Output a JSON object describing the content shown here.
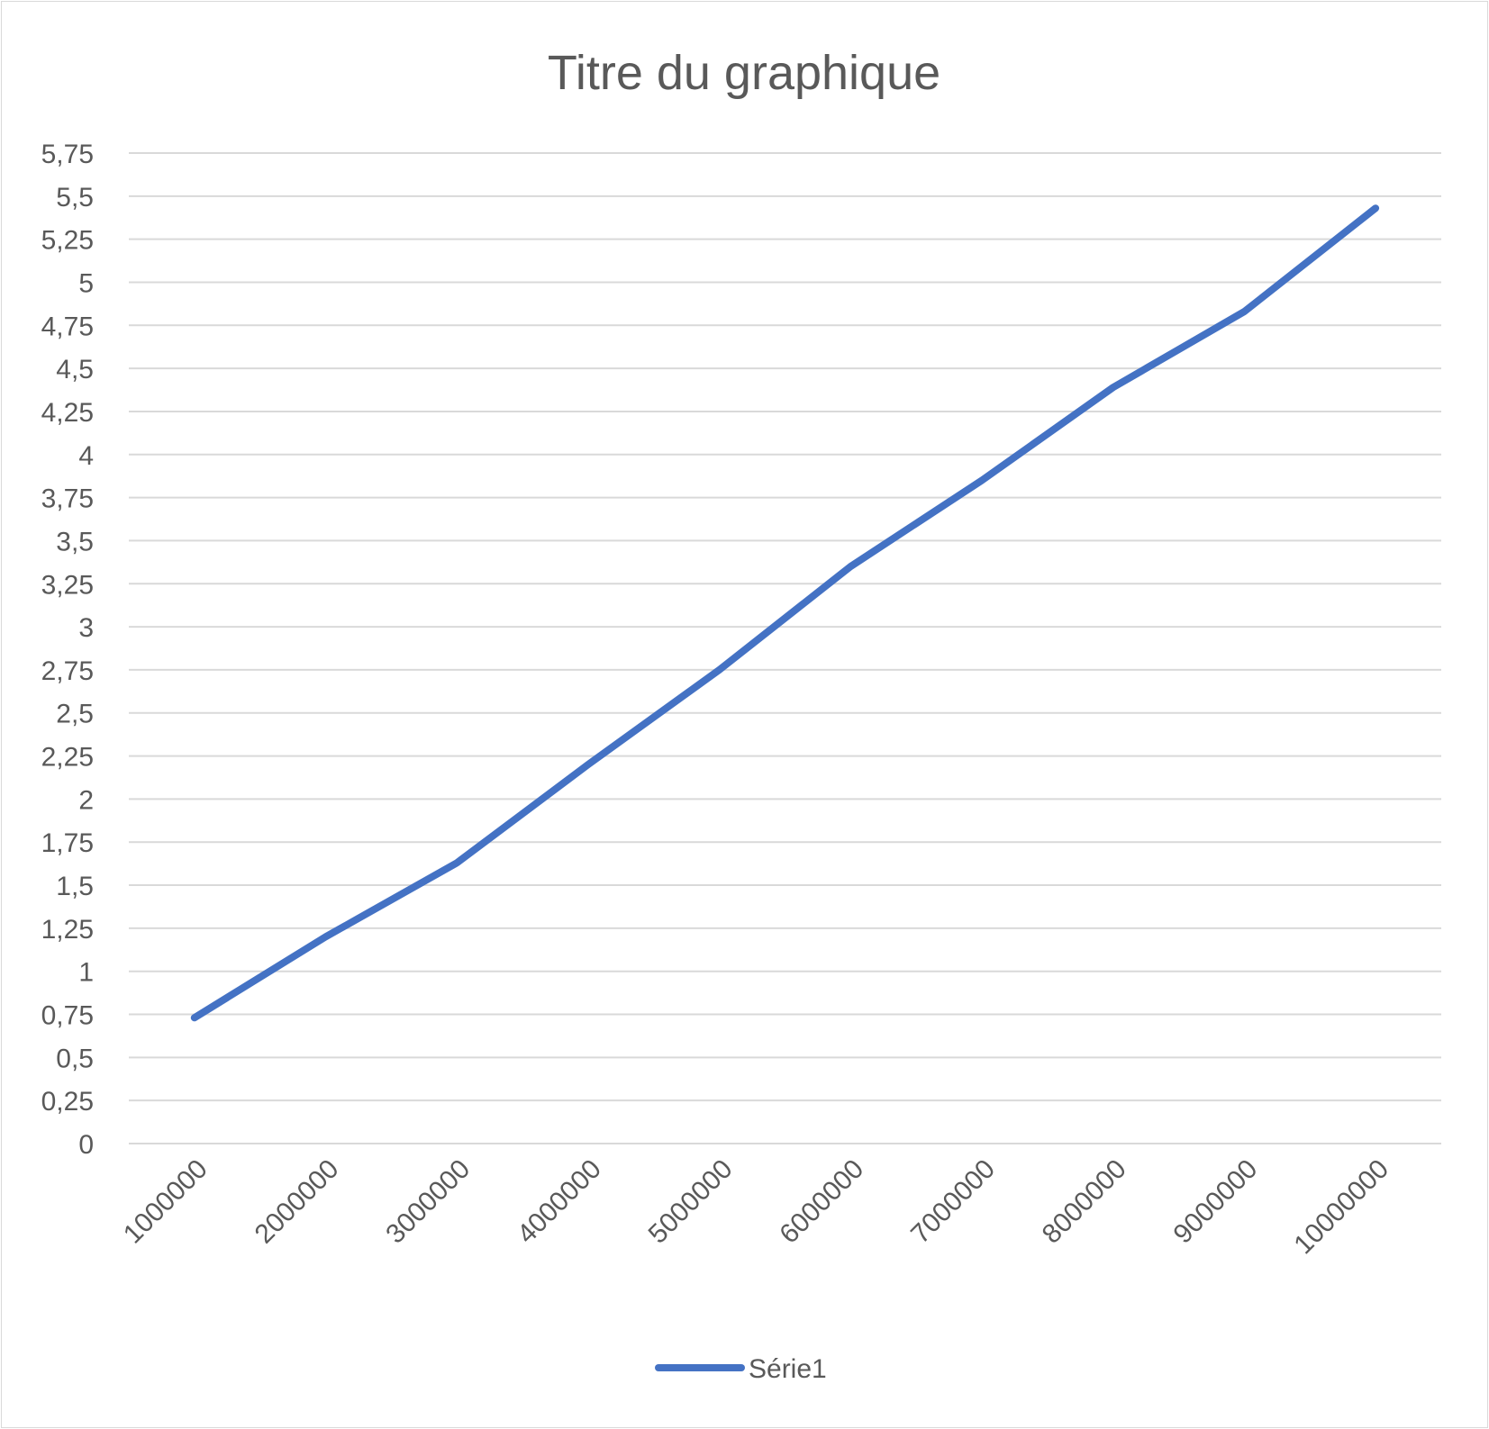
{
  "chart_data": {
    "type": "line",
    "title": "Titre du graphique",
    "xlabel": "",
    "ylabel": "",
    "categories": [
      "1000000",
      "2000000",
      "3000000",
      "4000000",
      "5000000",
      "6000000",
      "7000000",
      "8000000",
      "9000000",
      "10000000"
    ],
    "y_ticks": [
      "0",
      "0,25",
      "0,5",
      "0,75",
      "1",
      "1,25",
      "1,5",
      "1,75",
      "2",
      "2,25",
      "2,5",
      "2,75",
      "3",
      "3,25",
      "3,5",
      "3,75",
      "4",
      "4,25",
      "4,5",
      "4,75",
      "5",
      "5,25",
      "5,5",
      "5,75"
    ],
    "ylim": [
      0,
      5.75
    ],
    "grid": true,
    "legend_position": "bottom",
    "series": [
      {
        "name": "Série1",
        "color": "#4472c4",
        "values": [
          0.73,
          1.2,
          1.63,
          2.2,
          2.75,
          3.35,
          3.85,
          4.39,
          4.83,
          5.43
        ]
      }
    ]
  }
}
